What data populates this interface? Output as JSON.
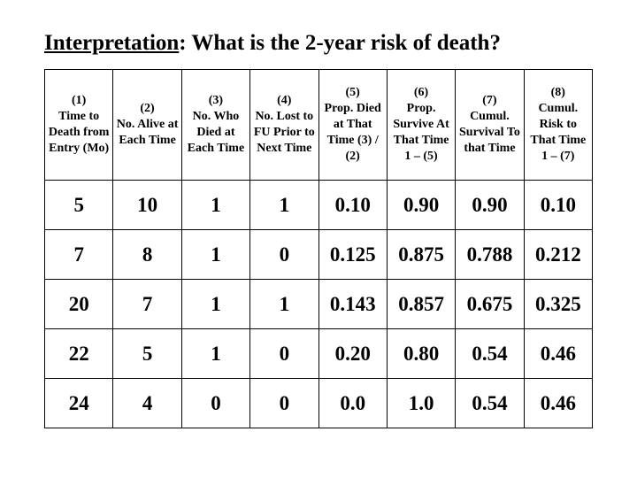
{
  "title_prefix": "Interpretation",
  "title_suffix": ":  What is the 2-year risk of death?",
  "table": {
    "columns": [
      {
        "num": "(1)",
        "desc": "Time to Death from Entry (Mo)"
      },
      {
        "num": "(2)",
        "desc": "No. Alive at Each Time"
      },
      {
        "num": "(3)",
        "desc": "No. Who Died at Each Time"
      },
      {
        "num": "(4)",
        "desc": "No. Lost to FU Prior to Next Time"
      },
      {
        "num": "(5)",
        "desc": "Prop. Died at That Time (3) / (2)"
      },
      {
        "num": "(6)",
        "desc": "Prop. Survive At That Time 1 – (5)"
      },
      {
        "num": "(7)",
        "desc": "Cumul. Survival To that Time"
      },
      {
        "num": "(8)",
        "desc": "Cumul. Risk to That Time 1 – (7)"
      }
    ],
    "rows": [
      [
        "5",
        "10",
        "1",
        "1",
        "0.10",
        "0.90",
        "0.90",
        "0.10"
      ],
      [
        "7",
        "8",
        "1",
        "0",
        "0.125",
        "0.875",
        "0.788",
        "0.212"
      ],
      [
        "20",
        "7",
        "1",
        "1",
        "0.143",
        "0.857",
        "0.675",
        "0.325"
      ],
      [
        "22",
        "5",
        "1",
        "0",
        "0.20",
        "0.80",
        "0.54",
        "0.46"
      ],
      [
        "24",
        "4",
        "0",
        "0",
        "0.0",
        "1.0",
        "0.54",
        "0.46"
      ]
    ],
    "border_color": "#000000",
    "text_color": "#000000",
    "background_color": "#ffffff",
    "header_fontsize": 14,
    "cell_fontsize": 23,
    "title_fontsize": 25
  }
}
